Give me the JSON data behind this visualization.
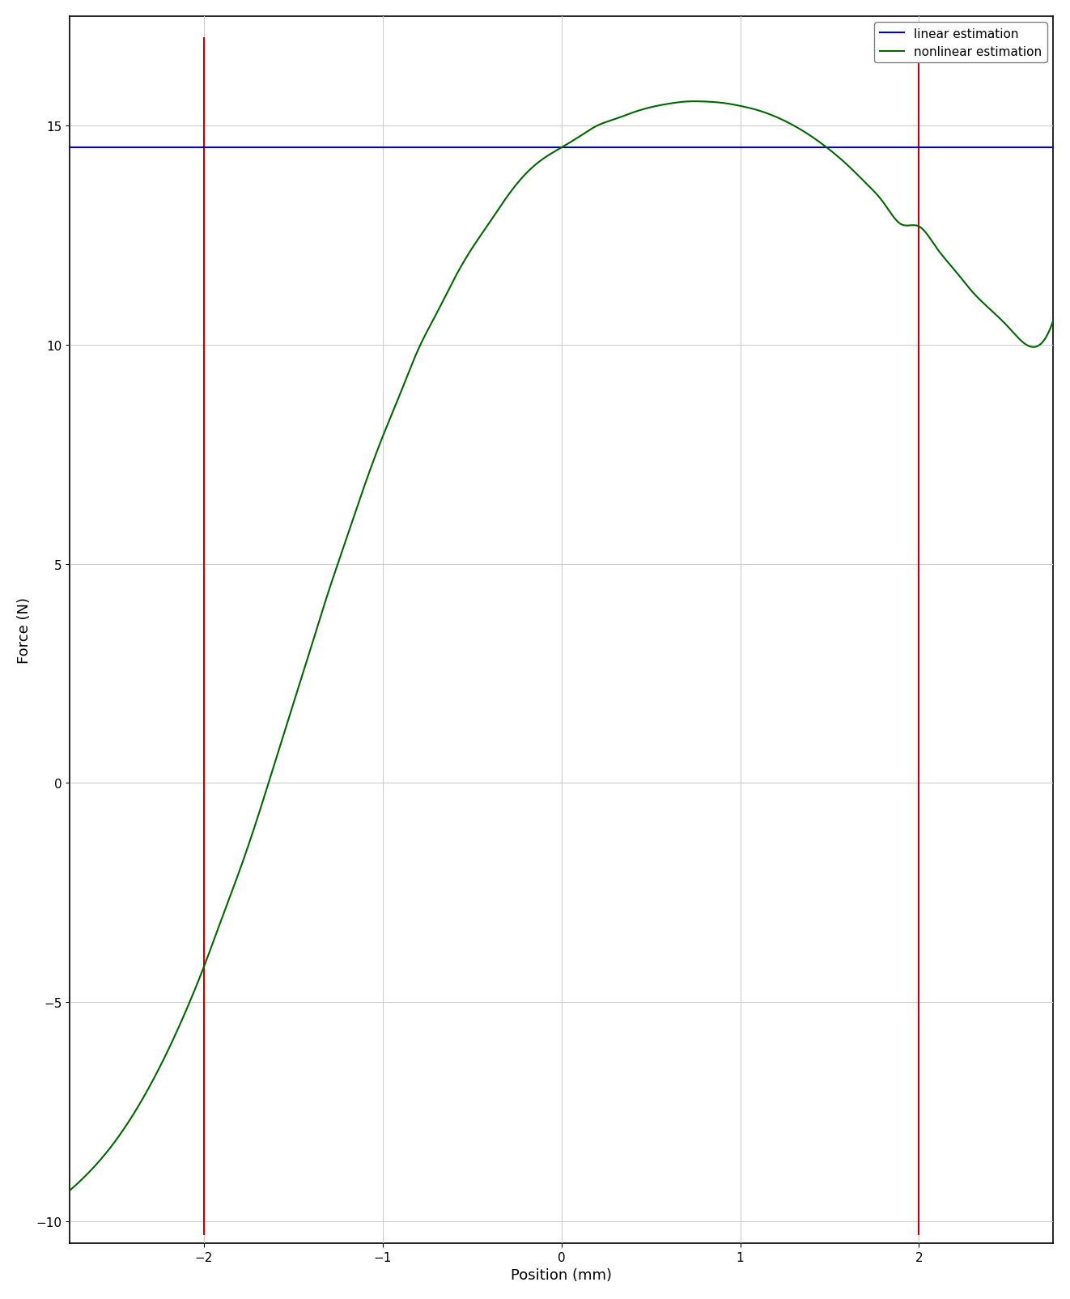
{
  "xlabel": "Position (mm)",
  "ylabel": "Force (N)",
  "xlim": [
    -2.75,
    2.75
  ],
  "ylim": [
    -10.5,
    17.5
  ],
  "xticks": [
    -2,
    -1,
    0,
    1,
    2
  ],
  "yticks": [
    -10,
    -5,
    0,
    5,
    10,
    15
  ],
  "linear_value": 14.5,
  "linear_color": "#0000cc",
  "nonlinear_color": "#006600",
  "red_line_color": "#cc0000",
  "red_line_x": [
    -2.0,
    2.0
  ],
  "red_line_ymin_frac_offset": -10.3,
  "red_line_ymax_frac_offset": 17.0,
  "figsize": [
    13.22,
    16.06
  ],
  "dpi": 100,
  "legend_labels": [
    "linear estimation",
    "nonlinear estimation"
  ],
  "grid_color": "#cccccc",
  "background_color": "#ffffff",
  "curve_x": [
    -2.75,
    -2.6,
    -2.5,
    -2.4,
    -2.3,
    -2.2,
    -2.1,
    -2.0,
    -1.9,
    -1.8,
    -1.7,
    -1.6,
    -1.5,
    -1.4,
    -1.3,
    -1.2,
    -1.1,
    -1.0,
    -0.9,
    -0.8,
    -0.7,
    -0.6,
    -0.5,
    -0.4,
    -0.3,
    -0.2,
    -0.1,
    0.0,
    0.1,
    0.2,
    0.3,
    0.4,
    0.5,
    0.6,
    0.7,
    0.8,
    0.9,
    1.0,
    1.1,
    1.2,
    1.3,
    1.4,
    1.5,
    1.6,
    1.7,
    1.8,
    1.9,
    2.0,
    2.1,
    2.2,
    2.3,
    2.4,
    2.5,
    2.6,
    2.75
  ],
  "curve_y": [
    -9.3,
    -8.7,
    -8.2,
    -7.6,
    -6.9,
    -6.1,
    -5.2,
    -4.2,
    -3.1,
    -2.0,
    -0.8,
    0.5,
    1.8,
    3.1,
    4.4,
    5.6,
    6.8,
    7.9,
    8.9,
    9.9,
    10.7,
    11.5,
    12.2,
    12.8,
    13.4,
    13.9,
    14.25,
    14.5,
    14.75,
    15.0,
    15.15,
    15.3,
    15.42,
    15.5,
    15.55,
    15.55,
    15.52,
    15.45,
    15.35,
    15.2,
    15.0,
    14.75,
    14.45,
    14.1,
    13.7,
    13.25,
    12.75,
    12.7,
    12.2,
    11.7,
    11.2,
    10.8,
    10.4,
    10.0,
    10.55
  ]
}
